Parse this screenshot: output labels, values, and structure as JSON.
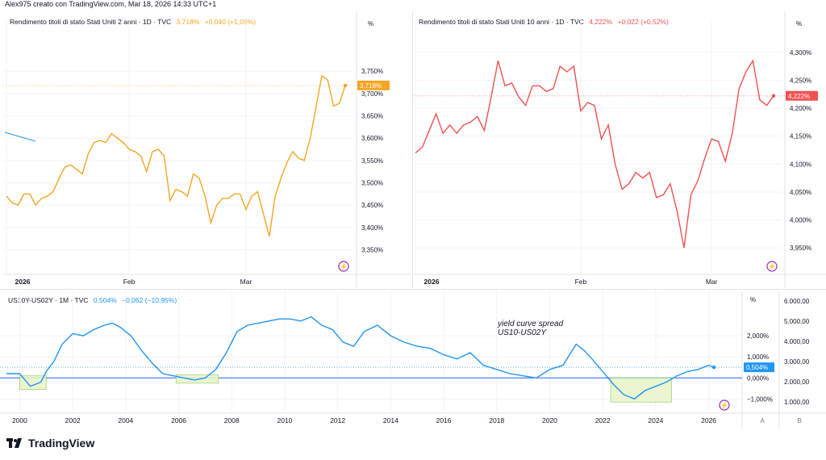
{
  "header": {
    "text": "Alex975 creato con TradingView.com, Mar 18, 2026 14:33 UTC+1"
  },
  "logo": {
    "text": "TradingView",
    "icon": "tradingview-logo-icon"
  },
  "colors": {
    "orange": "#f5a623",
    "red": "#f05252",
    "blue": "#2196f3",
    "grid": "#f0f3fa",
    "green_box": "#e8f5c8"
  },
  "chart_data": [
    {
      "type": "line",
      "title": "Rendimento titoli di stato Stati Uniti 2 anni · 1D · TVC",
      "price": "3,718%",
      "change": "+0,040 (+1,09%)",
      "unit": "%",
      "last_label": "3,718%",
      "x_ticks": [
        "2026",
        "Feb",
        "Mar"
      ],
      "y_ticks": [
        "3,750%",
        "3,700%",
        "3,650%",
        "3,600%",
        "3,550%",
        "3,500%",
        "3,450%",
        "3,400%",
        "3,350%"
      ],
      "ylim": [
        3.32,
        3.83
      ],
      "y": [
        3.47,
        3.455,
        3.45,
        3.475,
        3.475,
        3.45,
        3.465,
        3.47,
        3.48,
        3.51,
        3.535,
        3.54,
        3.53,
        3.52,
        3.565,
        3.59,
        3.595,
        3.59,
        3.61,
        3.6,
        3.59,
        3.575,
        3.57,
        3.56,
        3.525,
        3.57,
        3.575,
        3.56,
        3.46,
        3.485,
        3.48,
        3.47,
        3.52,
        3.51,
        3.47,
        3.41,
        3.45,
        3.465,
        3.465,
        3.475,
        3.475,
        3.44,
        3.47,
        3.48,
        3.43,
        3.38,
        3.47,
        3.51,
        3.545,
        3.57,
        3.555,
        3.55,
        3.6,
        3.67,
        3.74,
        3.73,
        3.672,
        3.678,
        3.718
      ]
    },
    {
      "type": "line",
      "title": "Rendimento titoli di stato Stati Uniti 10 anni · 1D · TVC",
      "price": "4,222%",
      "change": "+0,022 (+0,52%)",
      "unit": "%",
      "last_label": "4,222%",
      "x_ticks": [
        "2026",
        "Feb",
        "Mar"
      ],
      "y_ticks": [
        "4,300%",
        "4,250%",
        "4,200%",
        "4,150%",
        "4,100%",
        "4,050%",
        "4,000%",
        "3,950%"
      ],
      "ylim": [
        3.92,
        4.33
      ],
      "y": [
        4.12,
        4.13,
        4.16,
        4.19,
        4.155,
        4.17,
        4.155,
        4.17,
        4.175,
        4.185,
        4.16,
        4.22,
        4.285,
        4.24,
        4.245,
        4.22,
        4.205,
        4.24,
        4.24,
        4.23,
        4.235,
        4.275,
        4.265,
        4.275,
        4.195,
        4.21,
        4.205,
        4.145,
        4.17,
        4.1,
        4.055,
        4.065,
        4.085,
        4.075,
        4.085,
        4.04,
        4.045,
        4.065,
        4.015,
        3.95,
        4.045,
        4.07,
        4.11,
        4.145,
        4.14,
        4.105,
        4.155,
        4.235,
        4.265,
        4.285,
        4.215,
        4.205,
        4.222
      ]
    },
    {
      "type": "line",
      "title": "US10Y-US02Y · 1M · TVC",
      "price": "0,504%",
      "change": "−0,062 (−10,95%)",
      "unit": "%",
      "last_label": "0,504%",
      "annotation": [
        "yield curve spread",
        "US10-US02Y"
      ],
      "x_ticks": [
        "2000",
        "2002",
        "2004",
        "2006",
        "2008",
        "2010",
        "2012",
        "2014",
        "2016",
        "2018",
        "2020",
        "2022",
        "2024",
        "2026"
      ],
      "xlim": [
        1999.5,
        2027.2
      ],
      "y_ticks_left": [
        "2,000%",
        "1,000%",
        "0,000%",
        "−1,000%"
      ],
      "y_ticks_right": [
        "6.000,00",
        "5.000,00",
        "4.000,00",
        "3.000,00",
        "2.000,00",
        "1.000,00"
      ],
      "ylim": [
        -1.6,
        3.0
      ],
      "x": [
        1999.5,
        2000.0,
        2000.4,
        2000.8,
        2001.0,
        2001.3,
        2001.6,
        2002.0,
        2002.4,
        2002.8,
        2003.2,
        2003.5,
        2003.8,
        2004.2,
        2004.6,
        2005.0,
        2005.4,
        2005.8,
        2006.2,
        2006.6,
        2007.0,
        2007.4,
        2007.8,
        2008.2,
        2008.6,
        2009.0,
        2009.4,
        2009.8,
        2010.2,
        2010.6,
        2011.0,
        2011.4,
        2011.8,
        2012.2,
        2012.6,
        2013.0,
        2013.5,
        2014.0,
        2014.5,
        2015.0,
        2015.5,
        2016.0,
        2016.5,
        2017.0,
        2017.5,
        2018.0,
        2018.5,
        2019.0,
        2019.5,
        2020.0,
        2020.5,
        2021.0,
        2021.3,
        2021.6,
        2022.0,
        2022.4,
        2022.8,
        2023.2,
        2023.6,
        2024.0,
        2024.4,
        2024.8,
        2025.2,
        2025.6,
        2026.0,
        2026.2
      ],
      "y": [
        0.2,
        0.2,
        -0.4,
        -0.2,
        0.3,
        0.8,
        1.6,
        2.1,
        2.0,
        2.3,
        2.5,
        2.6,
        2.4,
        2.0,
        1.3,
        0.7,
        0.2,
        0.1,
        0.0,
        -0.1,
        0.0,
        0.4,
        1.2,
        2.2,
        2.5,
        2.6,
        2.7,
        2.8,
        2.8,
        2.7,
        2.9,
        2.5,
        2.3,
        1.7,
        1.5,
        2.2,
        2.5,
        2.0,
        1.7,
        1.5,
        1.4,
        1.1,
        0.9,
        1.2,
        0.6,
        0.4,
        0.2,
        0.1,
        0.0,
        0.4,
        0.6,
        1.6,
        1.3,
        0.9,
        0.3,
        -0.3,
        -0.8,
        -1.0,
        -0.6,
        -0.4,
        -0.2,
        0.1,
        0.3,
        0.4,
        0.6,
        0.504
      ],
      "boxes": [
        [
          2000.0,
          2001.0,
          -0.55,
          0.1
        ],
        [
          2005.9,
          2007.5,
          -0.25,
          0.15
        ],
        [
          2022.3,
          2024.6,
          -1.15,
          0.0
        ]
      ]
    }
  ]
}
